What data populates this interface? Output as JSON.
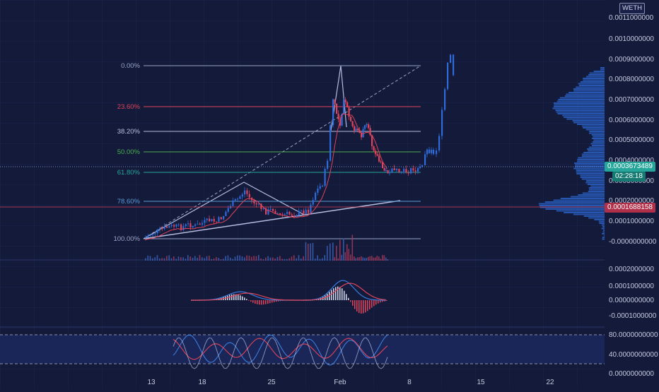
{
  "currency": "WETH",
  "colors": {
    "background": "#131a3a",
    "up": "#2e6bd8",
    "down": "#e0445a",
    "grid": "#1f2a55",
    "text": "#c7cbe0"
  },
  "price_axis": {
    "ticks": [
      "0.0011000000",
      "0.0010000000",
      "0.0009000000",
      "0.0008000000",
      "0.0007000000",
      "0.0006000000",
      "0.0005000000",
      "0.0004000000",
      "0.0003000000",
      "0.0002000000",
      "0.0001000000",
      "-0.0000000000"
    ],
    "current_price": "0.0003673489",
    "countdown": "02:28:18",
    "highlight_price": "0.0001688158"
  },
  "macd_axis": {
    "ticks": [
      "0.0002000000",
      "0.0001000000",
      "0.0000000000",
      "-0.0001000000"
    ]
  },
  "rsi_axis": {
    "ticks": [
      "80.0000000000",
      "40.0000000000",
      "0.0000000000"
    ]
  },
  "time_axis": {
    "labels": [
      "13",
      "18",
      "25",
      "Feb",
      "8",
      "15",
      "22"
    ]
  },
  "fib_levels": [
    {
      "label": "0.00%",
      "color": "#9aa3c8"
    },
    {
      "label": "23.60%",
      "color": "#e0445a"
    },
    {
      "label": "38.20%",
      "color": "#b8c0de"
    },
    {
      "label": "50.00%",
      "color": "#4caf50"
    },
    {
      "label": "61.80%",
      "color": "#26a69a"
    },
    {
      "label": "78.60%",
      "color": "#5b9bd5"
    },
    {
      "label": "100.00%",
      "color": "#9aa3c8"
    }
  ],
  "chart_data": {
    "type": "candlestick",
    "y_unit": "WETH",
    "ylim": [
      -5e-05,
      0.00115
    ],
    "x_ticks": [
      "13",
      "18",
      "25",
      "Feb",
      "8",
      "15",
      "22"
    ],
    "fib_retracement": [
      0.0,
      23.6,
      38.2,
      50.0,
      61.8,
      78.6,
      100.0
    ],
    "last_price": 0.0003673489,
    "marked_price": 0.0001688158
  }
}
